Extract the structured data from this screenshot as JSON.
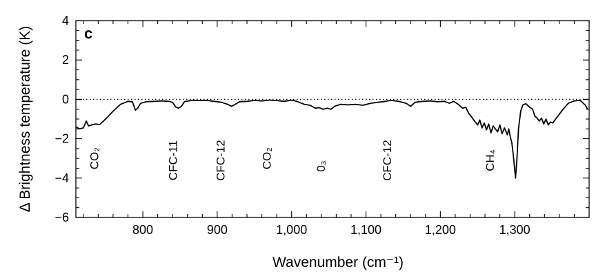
{
  "chart_data": {
    "type": "line",
    "panel_label": "c",
    "title": "",
    "xlabel": "Wavenumber (cm⁻¹)",
    "ylabel": "Δ Brightness temperature (K)",
    "xlim": [
      710,
      1400
    ],
    "ylim": [
      -6,
      4
    ],
    "x_ticks": [
      800,
      900,
      1000,
      1100,
      1200,
      1300
    ],
    "x_tick_labels": [
      "800",
      "900",
      "1,000",
      "1,100",
      "1,200",
      "1,300"
    ],
    "y_ticks": [
      4,
      2,
      0,
      -2,
      -4,
      -6
    ],
    "y_tick_labels": [
      "4",
      "2",
      "0",
      "−2",
      "−4",
      "−6"
    ],
    "reference_line": {
      "y": 0,
      "style": "dotted"
    },
    "grid": false,
    "series": [
      {
        "points": [
          [
            710,
            -1.4
          ],
          [
            715,
            -1.5
          ],
          [
            720,
            -1.45
          ],
          [
            724,
            -1.1
          ],
          [
            727,
            -1.35
          ],
          [
            731,
            -1.3
          ],
          [
            736,
            -1.25
          ],
          [
            742,
            -1.28
          ],
          [
            750,
            -1.0
          ],
          [
            760,
            -0.6
          ],
          [
            770,
            -0.25
          ],
          [
            780,
            -0.1
          ],
          [
            786,
            -0.12
          ],
          [
            790,
            -0.55
          ],
          [
            793,
            -0.45
          ],
          [
            797,
            -0.2
          ],
          [
            805,
            -0.12
          ],
          [
            815,
            -0.1
          ],
          [
            825,
            -0.08
          ],
          [
            835,
            -0.1
          ],
          [
            840,
            -0.15
          ],
          [
            844,
            -0.38
          ],
          [
            848,
            -0.45
          ],
          [
            852,
            -0.35
          ],
          [
            856,
            -0.12
          ],
          [
            866,
            -0.05
          ],
          [
            876,
            -0.06
          ],
          [
            886,
            -0.05
          ],
          [
            896,
            -0.1
          ],
          [
            906,
            -0.15
          ],
          [
            914,
            -0.25
          ],
          [
            919,
            -0.35
          ],
          [
            923,
            -0.28
          ],
          [
            930,
            -0.12
          ],
          [
            940,
            -0.1
          ],
          [
            950,
            -0.05
          ],
          [
            960,
            -0.08
          ],
          [
            970,
            -0.04
          ],
          [
            980,
            -0.06
          ],
          [
            990,
            -0.1
          ],
          [
            1000,
            -0.04
          ],
          [
            1007,
            -0.1
          ],
          [
            1017,
            -0.25
          ],
          [
            1025,
            -0.3
          ],
          [
            1032,
            -0.45
          ],
          [
            1037,
            -0.42
          ],
          [
            1042,
            -0.5
          ],
          [
            1048,
            -0.45
          ],
          [
            1053,
            -0.5
          ],
          [
            1058,
            -0.35
          ],
          [
            1066,
            -0.25
          ],
          [
            1076,
            -0.28
          ],
          [
            1086,
            -0.25
          ],
          [
            1096,
            -0.3
          ],
          [
            1106,
            -0.2
          ],
          [
            1116,
            -0.15
          ],
          [
            1126,
            -0.1
          ],
          [
            1134,
            -0.05
          ],
          [
            1144,
            -0.1
          ],
          [
            1154,
            -0.2
          ],
          [
            1160,
            -0.35
          ],
          [
            1166,
            -0.15
          ],
          [
            1176,
            -0.1
          ],
          [
            1186,
            -0.08
          ],
          [
            1196,
            -0.12
          ],
          [
            1206,
            -0.1
          ],
          [
            1212,
            -0.2
          ],
          [
            1218,
            -0.1
          ],
          [
            1224,
            -0.25
          ],
          [
            1230,
            -0.45
          ],
          [
            1234,
            -0.4
          ],
          [
            1238,
            -0.7
          ],
          [
            1242,
            -0.9
          ],
          [
            1246,
            -1.1
          ],
          [
            1250,
            -1.3
          ],
          [
            1253,
            -1.05
          ],
          [
            1256,
            -1.45
          ],
          [
            1259,
            -1.2
          ],
          [
            1262,
            -1.55
          ],
          [
            1265,
            -1.25
          ],
          [
            1268,
            -1.7
          ],
          [
            1271,
            -1.35
          ],
          [
            1274,
            -1.5
          ],
          [
            1277,
            -1.65
          ],
          [
            1280,
            -1.3
          ],
          [
            1283,
            -1.75
          ],
          [
            1286,
            -1.45
          ],
          [
            1288,
            -1.6
          ],
          [
            1290,
            -1.8
          ],
          [
            1292,
            -1.5
          ],
          [
            1294,
            -1.9
          ],
          [
            1296,
            -2.2
          ],
          [
            1298,
            -2.8
          ],
          [
            1301,
            -4.0
          ],
          [
            1303,
            -3.0
          ],
          [
            1305,
            -1.5
          ],
          [
            1308,
            -0.6
          ],
          [
            1311,
            -0.28
          ],
          [
            1315,
            -0.22
          ],
          [
            1320,
            -0.4
          ],
          [
            1324,
            -0.5
          ],
          [
            1327,
            -0.85
          ],
          [
            1330,
            -0.95
          ],
          [
            1333,
            -1.1
          ],
          [
            1336,
            -0.95
          ],
          [
            1339,
            -1.25
          ],
          [
            1342,
            -1.0
          ],
          [
            1345,
            -1.3
          ],
          [
            1348,
            -1.15
          ],
          [
            1351,
            -1.2
          ],
          [
            1355,
            -1.0
          ],
          [
            1360,
            -0.75
          ],
          [
            1365,
            -0.5
          ],
          [
            1372,
            -0.2
          ],
          [
            1380,
            -0.08
          ],
          [
            1388,
            -0.05
          ],
          [
            1395,
            -0.3
          ],
          [
            1398,
            -0.5
          ]
        ]
      }
    ],
    "annotations": [
      {
        "text": "CO₂",
        "x": 740,
        "y": -3.0
      },
      {
        "text": "CFC-11",
        "x": 846,
        "y": -3.1
      },
      {
        "text": "CFC-12",
        "x": 910,
        "y": -3.1
      },
      {
        "text": "CO₂",
        "x": 972,
        "y": -3.0
      },
      {
        "text": "0₃",
        "x": 1045,
        "y": -3.4
      },
      {
        "text": "CFC-12",
        "x": 1134,
        "y": -3.1
      },
      {
        "text": "CH₄",
        "x": 1272,
        "y": -3.1
      }
    ]
  }
}
